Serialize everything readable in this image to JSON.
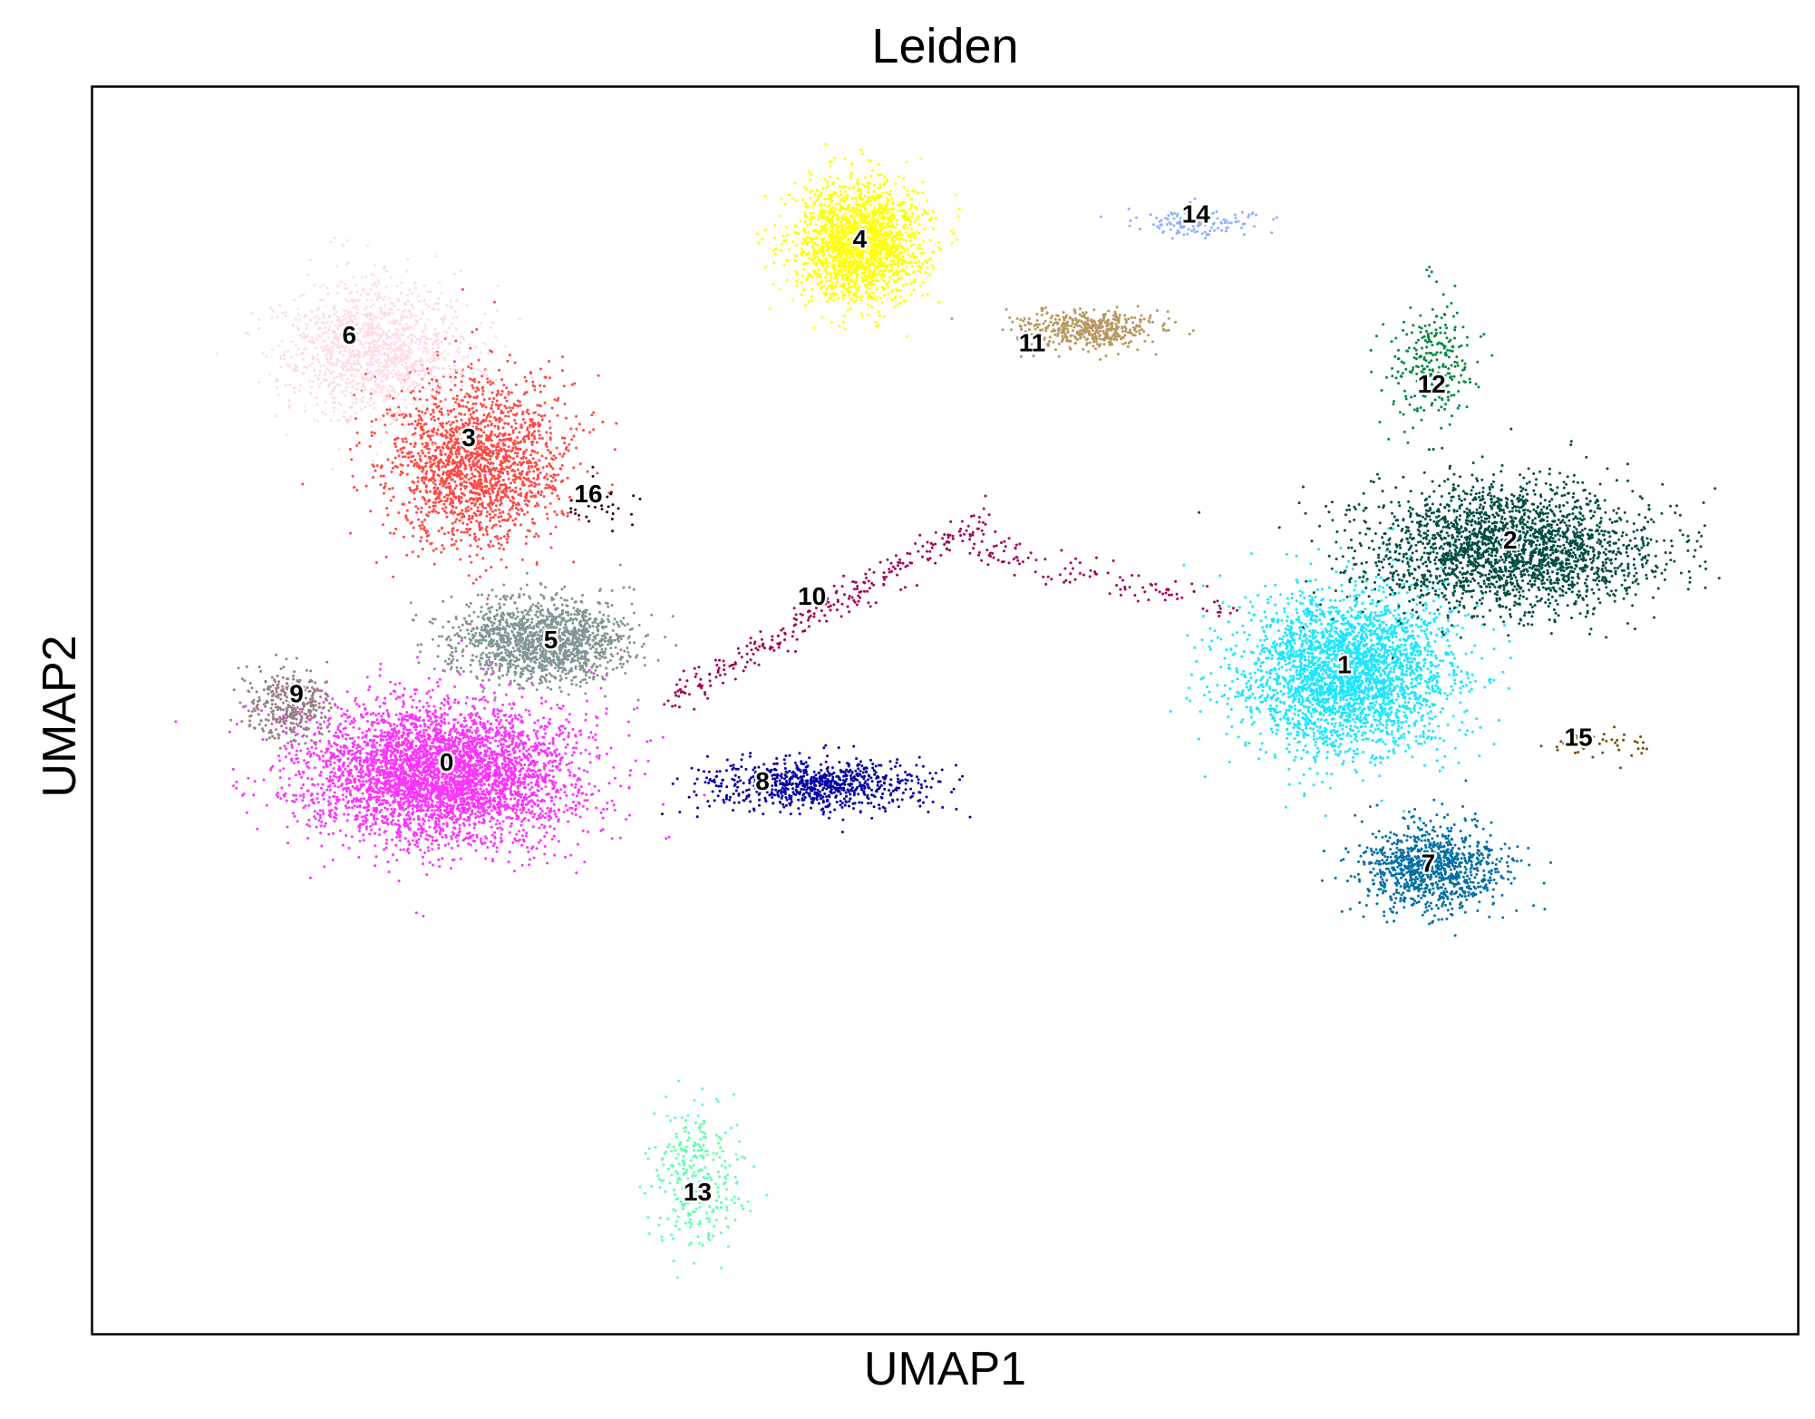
{
  "chart_data": {
    "type": "scatter",
    "title": "Leiden",
    "xlabel": "UMAP1",
    "ylabel": "UMAP2",
    "xlim": [
      0,
      100
    ],
    "ylim": [
      0,
      100
    ],
    "xticks": [],
    "yticks": [],
    "grid": false,
    "legend": "on data",
    "point_size": 1.5,
    "clusters": [
      {
        "name": "0",
        "color": "#ff33ff",
        "center": [
          20.5,
          45.0
        ],
        "spread": [
          7.8,
          5.6
        ],
        "count": 4200
      },
      {
        "name": "1",
        "color": "#1ce6ff",
        "center": [
          73.5,
          53.0
        ],
        "spread": [
          6.2,
          6.4
        ],
        "count": 3000
      },
      {
        "name": "2",
        "color": "#004d43",
        "center": [
          83.0,
          63.0
        ],
        "spread": [
          8.5,
          5.0
        ],
        "count": 2400
      },
      {
        "name": "3",
        "color": "#ff4a46",
        "center": [
          22.5,
          70.0
        ],
        "spread": [
          5.2,
          6.8
        ],
        "count": 1900
      },
      {
        "name": "4",
        "color": "#ffff00",
        "center": [
          45.0,
          87.5
        ],
        "spread": [
          3.8,
          4.8
        ],
        "count": 1900
      },
      {
        "name": "5",
        "color": "#809693",
        "center": [
          26.5,
          55.5
        ],
        "spread": [
          5.2,
          3.3
        ],
        "count": 1500
      },
      {
        "name": "6",
        "color": "#ffdbe5",
        "center": [
          16.5,
          79.0
        ],
        "spread": [
          5.5,
          5.5
        ],
        "count": 1200
      },
      {
        "name": "7",
        "color": "#006fa6",
        "center": [
          78.5,
          37.5
        ],
        "spread": [
          4.2,
          3.6
        ],
        "count": 1000
      },
      {
        "name": "8",
        "color": "#0000a6",
        "center": [
          42.5,
          44.0
        ],
        "spread": [
          6.5,
          2.0
        ],
        "count": 800
      },
      {
        "name": "9",
        "color": "#997d87",
        "center": [
          11.5,
          50.5
        ],
        "spread": [
          2.4,
          2.8
        ],
        "count": 350
      },
      {
        "name": "10",
        "color": "#a30059",
        "center": [
          45.0,
          57.0
        ],
        "spread": [
          10.0,
          5.0
        ],
        "count": 400
      },
      {
        "name": "11",
        "color": "#b79762",
        "center": [
          58.5,
          80.5
        ],
        "spread": [
          4.0,
          1.6
        ],
        "count": 450
      },
      {
        "name": "12",
        "color": "#008941",
        "center": [
          78.5,
          78.0
        ],
        "spread": [
          2.5,
          5.0
        ],
        "count": 260
      },
      {
        "name": "13",
        "color": "#63ffac",
        "center": [
          35.5,
          12.5
        ],
        "spread": [
          2.8,
          5.5
        ],
        "count": 300
      },
      {
        "name": "14",
        "color": "#8fb0ff",
        "center": [
          65.0,
          89.0
        ],
        "spread": [
          4.0,
          1.2
        ],
        "count": 140
      },
      {
        "name": "15",
        "color": "#7a4900",
        "center": [
          88.5,
          47.5
        ],
        "spread": [
          4.0,
          1.6
        ],
        "count": 40
      },
      {
        "name": "16",
        "color": "#3b000f",
        "center": [
          29.5,
          66.5
        ],
        "spread": [
          2.0,
          2.0
        ],
        "count": 40
      }
    ],
    "labels": [
      {
        "text": "0",
        "x": 20.8,
        "y": 45.7
      },
      {
        "text": "1",
        "x": 73.4,
        "y": 53.5
      },
      {
        "text": "2",
        "x": 83.1,
        "y": 63.5
      },
      {
        "text": "3",
        "x": 22.1,
        "y": 71.7
      },
      {
        "text": "4",
        "x": 45.0,
        "y": 87.6
      },
      {
        "text": "5",
        "x": 26.9,
        "y": 55.5
      },
      {
        "text": "6",
        "x": 15.1,
        "y": 79.9
      },
      {
        "text": "7",
        "x": 78.3,
        "y": 37.6
      },
      {
        "text": "8",
        "x": 39.3,
        "y": 44.2
      },
      {
        "text": "9",
        "x": 12.0,
        "y": 51.2
      },
      {
        "text": "10",
        "x": 42.2,
        "y": 59.0
      },
      {
        "text": "11",
        "x": 55.1,
        "y": 79.3
      },
      {
        "text": "12",
        "x": 78.5,
        "y": 76.0
      },
      {
        "text": "13",
        "x": 35.5,
        "y": 11.3
      },
      {
        "text": "14",
        "x": 64.7,
        "y": 89.6
      },
      {
        "text": "15",
        "x": 87.1,
        "y": 47.7
      },
      {
        "text": "16",
        "x": 29.1,
        "y": 67.2
      }
    ]
  }
}
